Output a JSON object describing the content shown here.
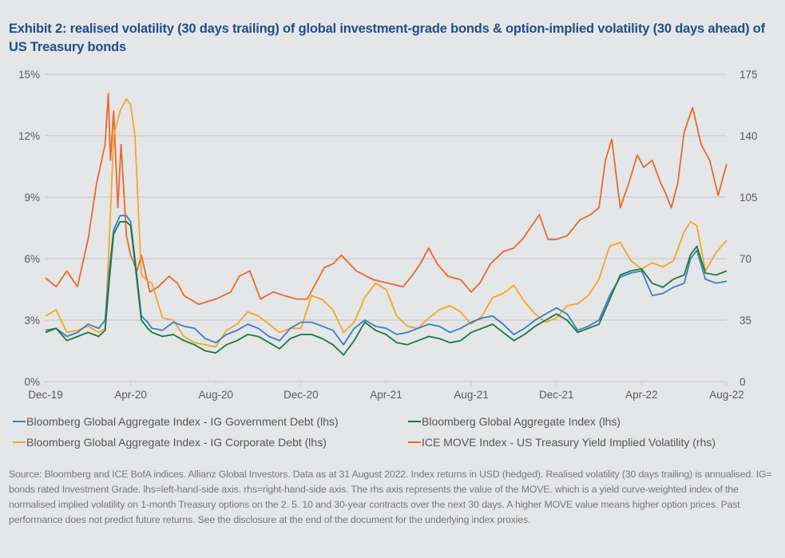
{
  "title": "Exhibit 2: realised volatility (30 days trailing) of global investment-grade bonds & option-implied volatility (30 days ahead) of US Treasury bonds",
  "source_note": "Source: Bloomberg and ICE BofA indices. Allianz Global Investors. Data as at 31 August 2022. Index returns in USD (hedged). Realised volatility (30 days trailing) is annualised. IG= bonds rated Investment Grade. lhs=left-hand-side axis. rhs=right-hand-side axis. The rhs axis represents the value of the MOVE. which is a yield curve-weighted index of the normalised implied volatility on 1-month Treasury options on the 2. 5. 10 and 30-year contracts over the next 30 days. A higher MOVE value means higher option prices. Past performance does not predict future returns. See the disclosure at the end of the document for the underlying index proxies.",
  "chart_data": {
    "type": "line",
    "title": "Exhibit 2: realised volatility (30 days trailing) of global investment-grade bonds & option-implied volatility (30 days ahead) of US Treasury bonds",
    "xlabel": "",
    "ylabel": "",
    "y2label": "",
    "x_unit": "months since Dec-19",
    "xlim": [
      0,
      32
    ],
    "ylim": [
      0,
      15
    ],
    "y2lim": [
      0,
      175
    ],
    "x_ticks": [
      0,
      4,
      8,
      12,
      16,
      20,
      24,
      28,
      32
    ],
    "x_tick_labels": [
      "Dec-19",
      "Apr-20",
      "Aug-20",
      "Dec-20",
      "Apr-21",
      "Aug-21",
      "Dec-21",
      "Apr-22",
      "Aug-22"
    ],
    "y_ticks": [
      0,
      3,
      6,
      9,
      12,
      15
    ],
    "y_tick_labels": [
      "0%",
      "3%",
      "6%",
      "9%",
      "12%",
      "15%"
    ],
    "y2_ticks": [
      0,
      35,
      70,
      105,
      140,
      175
    ],
    "y2_tick_labels": [
      "0",
      "35",
      "70",
      "105",
      "140",
      "175"
    ],
    "grid": true,
    "legend_position": "bottom",
    "series": [
      {
        "name": "Bloomberg Global Aggregate Index - IG Government Debt (lhs)",
        "axis": "left",
        "color": "#3a7dc9",
        "x": [
          0,
          0.5,
          1,
          1.5,
          2,
          2.5,
          2.8,
          3,
          3.2,
          3.5,
          3.8,
          4,
          4.2,
          4.5,
          4.8,
          5,
          5.5,
          6,
          6.5,
          7,
          7.5,
          8,
          8.5,
          9,
          9.5,
          10,
          10.5,
          11,
          11.5,
          12,
          12.5,
          13,
          13.5,
          14,
          14.5,
          15,
          15.5,
          16,
          16.5,
          17,
          17.5,
          18,
          18.5,
          19,
          19.5,
          20,
          20.5,
          21,
          21.5,
          22,
          22.5,
          23,
          23.5,
          24,
          24.5,
          25,
          25.5,
          26,
          26.5,
          27,
          27.5,
          28,
          28.5,
          29,
          29.5,
          30,
          30.3,
          30.6,
          31,
          31.5,
          32
        ],
        "values": [
          2.5,
          2.6,
          2.2,
          2.4,
          2.8,
          2.6,
          3.0,
          5.5,
          7.4,
          8.1,
          8.1,
          7.8,
          6.0,
          3.2,
          2.9,
          2.6,
          2.5,
          2.9,
          2.7,
          2.6,
          2.1,
          1.9,
          2.3,
          2.5,
          2.8,
          2.6,
          2.2,
          2.0,
          2.6,
          2.9,
          2.9,
          2.7,
          2.5,
          1.8,
          2.6,
          3.0,
          2.7,
          2.6,
          2.3,
          2.4,
          2.6,
          2.8,
          2.7,
          2.4,
          2.6,
          2.9,
          3.1,
          3.2,
          2.8,
          2.3,
          2.6,
          3.0,
          3.3,
          3.6,
          3.3,
          2.5,
          2.7,
          3.0,
          4.2,
          5.1,
          5.3,
          5.4,
          4.2,
          4.3,
          4.6,
          4.8,
          6.0,
          6.4,
          5.0,
          4.8,
          4.9
        ]
      },
      {
        "name": "Bloomberg Global Aggregate Index (lhs)",
        "axis": "left",
        "color": "#1a7a3a",
        "x": [
          0,
          0.5,
          1,
          1.5,
          2,
          2.5,
          2.8,
          3,
          3.2,
          3.5,
          3.8,
          4,
          4.2,
          4.5,
          4.8,
          5,
          5.5,
          6,
          6.5,
          7,
          7.5,
          8,
          8.5,
          9,
          9.5,
          10,
          10.5,
          11,
          11.5,
          12,
          12.5,
          13,
          13.5,
          14,
          14.5,
          15,
          15.5,
          16,
          16.5,
          17,
          17.5,
          18,
          18.5,
          19,
          19.5,
          20,
          20.5,
          21,
          21.5,
          22,
          22.5,
          23,
          23.5,
          24,
          24.5,
          25,
          25.5,
          26,
          26.5,
          27,
          27.5,
          28,
          28.5,
          29,
          29.5,
          30,
          30.3,
          30.6,
          31,
          31.5,
          32
        ],
        "values": [
          2.4,
          2.6,
          2.0,
          2.2,
          2.4,
          2.2,
          2.5,
          5.0,
          7.2,
          7.8,
          7.8,
          7.6,
          5.8,
          3.0,
          2.6,
          2.4,
          2.2,
          2.3,
          2.0,
          1.8,
          1.5,
          1.4,
          1.8,
          2.0,
          2.3,
          2.2,
          1.9,
          1.6,
          2.1,
          2.3,
          2.3,
          2.1,
          1.8,
          1.3,
          2.0,
          2.9,
          2.5,
          2.3,
          1.9,
          1.8,
          2.0,
          2.2,
          2.1,
          1.9,
          2.0,
          2.4,
          2.6,
          2.8,
          2.4,
          2.0,
          2.3,
          2.7,
          3.0,
          3.3,
          3.0,
          2.4,
          2.6,
          2.8,
          4.0,
          5.2,
          5.4,
          5.5,
          4.8,
          4.6,
          5.0,
          5.2,
          6.2,
          6.6,
          5.3,
          5.2,
          5.4
        ]
      },
      {
        "name": "Bloomberg Global Aggregate Index - IG Corporate Debt (lhs)",
        "axis": "left",
        "color": "#f5a623",
        "x": [
          0,
          0.5,
          1,
          1.5,
          2,
          2.5,
          2.8,
          3,
          3.2,
          3.5,
          3.8,
          4,
          4.2,
          4.5,
          4.8,
          5,
          5.5,
          6,
          6.5,
          7,
          7.5,
          8,
          8.5,
          9,
          9.5,
          10,
          10.5,
          11,
          11.5,
          12,
          12.5,
          13,
          13.5,
          14,
          14.5,
          15,
          15.5,
          16,
          16.5,
          17,
          17.5,
          18,
          18.5,
          19,
          19.5,
          20,
          20.5,
          21,
          21.5,
          22,
          22.5,
          23,
          23.5,
          24,
          24.5,
          25,
          25.5,
          26,
          26.5,
          27,
          27.5,
          28,
          28.5,
          29,
          29.5,
          30,
          30.3,
          30.6,
          31,
          31.5,
          32
        ],
        "values": [
          3.2,
          3.5,
          2.4,
          2.5,
          2.7,
          2.4,
          2.6,
          7.0,
          12.0,
          13.2,
          13.8,
          13.5,
          12.0,
          5.2,
          4.9,
          4.8,
          3.1,
          3.0,
          2.2,
          1.9,
          1.8,
          1.7,
          2.5,
          2.8,
          3.4,
          3.2,
          2.8,
          2.4,
          2.6,
          2.6,
          4.2,
          4.0,
          3.5,
          2.4,
          2.9,
          4.1,
          4.8,
          4.5,
          3.2,
          2.7,
          2.6,
          3.1,
          3.5,
          3.7,
          3.4,
          2.8,
          3.2,
          4.1,
          4.3,
          4.7,
          3.9,
          3.3,
          2.9,
          3.1,
          3.7,
          3.8,
          4.2,
          5.0,
          6.6,
          6.8,
          5.9,
          5.5,
          5.8,
          5.6,
          5.9,
          7.3,
          7.8,
          7.6,
          5.4,
          6.3,
          6.9
        ]
      },
      {
        "name": "ICE MOVE Index - US Treasury Yield Implied Volatility (rhs)",
        "axis": "right",
        "color": "#e8692a",
        "x": [
          0,
          0.5,
          1,
          1.5,
          2,
          2.4,
          2.8,
          2.95,
          3.05,
          3.2,
          3.4,
          3.55,
          3.8,
          4,
          4.3,
          4.5,
          4.9,
          5.3,
          5.8,
          6.2,
          6.5,
          7.2,
          8,
          8.7,
          9.1,
          9.6,
          10.1,
          10.7,
          11.2,
          11.8,
          12.3,
          12.7,
          13.1,
          13.5,
          13.9,
          14.6,
          15.4,
          16.1,
          16.8,
          17.2,
          17.6,
          18,
          18.4,
          18.9,
          19.5,
          20,
          20.4,
          20.9,
          21.5,
          22,
          22.4,
          22.8,
          23.2,
          23.6,
          24,
          24.5,
          25.1,
          25.6,
          26,
          26.3,
          26.6,
          27,
          27.4,
          27.8,
          28.1,
          28.5,
          28.9,
          29.1,
          29.4,
          29.7,
          30,
          30.4,
          30.8,
          31.2,
          31.6,
          32
        ],
        "values": [
          59,
          54,
          63,
          54,
          81,
          113,
          135,
          164,
          126,
          154,
          99,
          135,
          83,
          72,
          63,
          72,
          51,
          54,
          60,
          56,
          49,
          44,
          47,
          51,
          60,
          63,
          47,
          51,
          49,
          47,
          47,
          56,
          65,
          67,
          72,
          63,
          58,
          56,
          54,
          60,
          67,
          76,
          67,
          60,
          58,
          51,
          56,
          67,
          74,
          76,
          81,
          88,
          95,
          81,
          81,
          83,
          92,
          95,
          99,
          126,
          138,
          99,
          113,
          129,
          122,
          126,
          113,
          108,
          99,
          113,
          142,
          156,
          135,
          126,
          106,
          124
        ]
      }
    ]
  },
  "legend": [
    {
      "label": "Bloomberg Global Aggregate Index - IG Government Debt (lhs)",
      "color": "#3a7dc9"
    },
    {
      "label": "Bloomberg Global Aggregate Index (lhs)",
      "color": "#1a7a3a"
    },
    {
      "label": "Bloomberg Global Aggregate Index - IG Corporate Debt (lhs)",
      "color": "#f5a623"
    },
    {
      "label": "ICE MOVE Index - US Treasury Yield Implied Volatility (rhs)",
      "color": "#e8692a"
    }
  ]
}
